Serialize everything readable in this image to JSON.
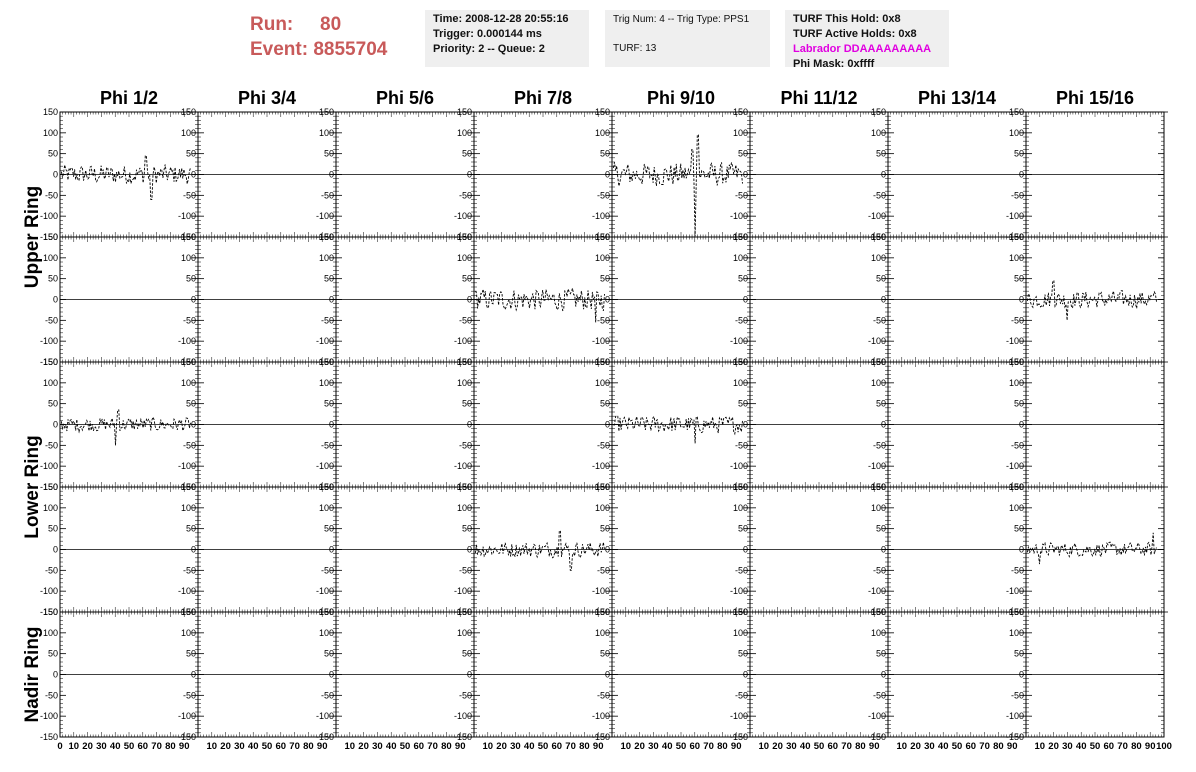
{
  "header": {
    "run_label": "Run:",
    "run_value": "80",
    "event_label": "Event:",
    "event_value": "8855704",
    "time": "Time: 2008-12-28 20:55:16",
    "trigger": "Trigger: 0.000144 ms",
    "priority": "Priority: 2 -- Queue: 2",
    "trig_num": "Trig Num: 4 -- Trig Type: PPS1",
    "turf": "TURF: 13",
    "turf_hold": "TURF This Hold: 0x8",
    "turf_active": "TURF Active Holds: 0x8",
    "labrador": "Labrador DDAAAAAAAAA",
    "phi_mask": "Phi Mask: 0xffff",
    "labrador_color": "#e000e0",
    "run_color": "#c85a5a"
  },
  "chart_data": {
    "type": "line",
    "columns": [
      "Phi 1/2",
      "Phi 3/4",
      "Phi 5/6",
      "Phi 7/8",
      "Phi 9/10",
      "Phi 11/12",
      "Phi 13/14",
      "Phi 15/16"
    ],
    "row_groups": [
      "Upper Ring",
      "Lower Ring",
      "Nadir Ring"
    ],
    "rows": 5,
    "xlim": [
      0,
      100
    ],
    "ylim": [
      -150,
      150
    ],
    "x_ticks": [
      0,
      10,
      20,
      30,
      40,
      50,
      60,
      70,
      80,
      90,
      100
    ],
    "y_ticks": [
      -150,
      -100,
      -50,
      0,
      50,
      100,
      150
    ],
    "line_style": "dashed",
    "active_panels": [
      {
        "row": 0,
        "col": 0,
        "amplitude": 25,
        "spikes": [
          {
            "x": 66,
            "y": -60
          },
          {
            "x": 62,
            "y": 45
          }
        ]
      },
      {
        "row": 0,
        "col": 4,
        "amplitude": 30,
        "spikes": [
          {
            "x": 62,
            "y": 95
          },
          {
            "x": 60,
            "y": -148
          },
          {
            "x": 58,
            "y": 60
          }
        ]
      },
      {
        "row": 1,
        "col": 3,
        "amplitude": 28,
        "spikes": [
          {
            "x": 88,
            "y": -55
          }
        ]
      },
      {
        "row": 1,
        "col": 7,
        "amplitude": 22,
        "spikes": [
          {
            "x": 20,
            "y": 45
          },
          {
            "x": 30,
            "y": -50
          }
        ]
      },
      {
        "row": 2,
        "col": 0,
        "amplitude": 18,
        "spikes": [
          {
            "x": 40,
            "y": -50
          },
          {
            "x": 42,
            "y": 35
          }
        ]
      },
      {
        "row": 2,
        "col": 4,
        "amplitude": 22,
        "spikes": [
          {
            "x": 60,
            "y": -45
          }
        ]
      },
      {
        "row": 3,
        "col": 3,
        "amplitude": 20,
        "spikes": [
          {
            "x": 62,
            "y": 45
          },
          {
            "x": 70,
            "y": -50
          }
        ]
      },
      {
        "row": 3,
        "col": 7,
        "amplitude": 18,
        "spikes": [
          {
            "x": 92,
            "y": 40
          },
          {
            "x": 10,
            "y": -35
          }
        ]
      }
    ]
  }
}
